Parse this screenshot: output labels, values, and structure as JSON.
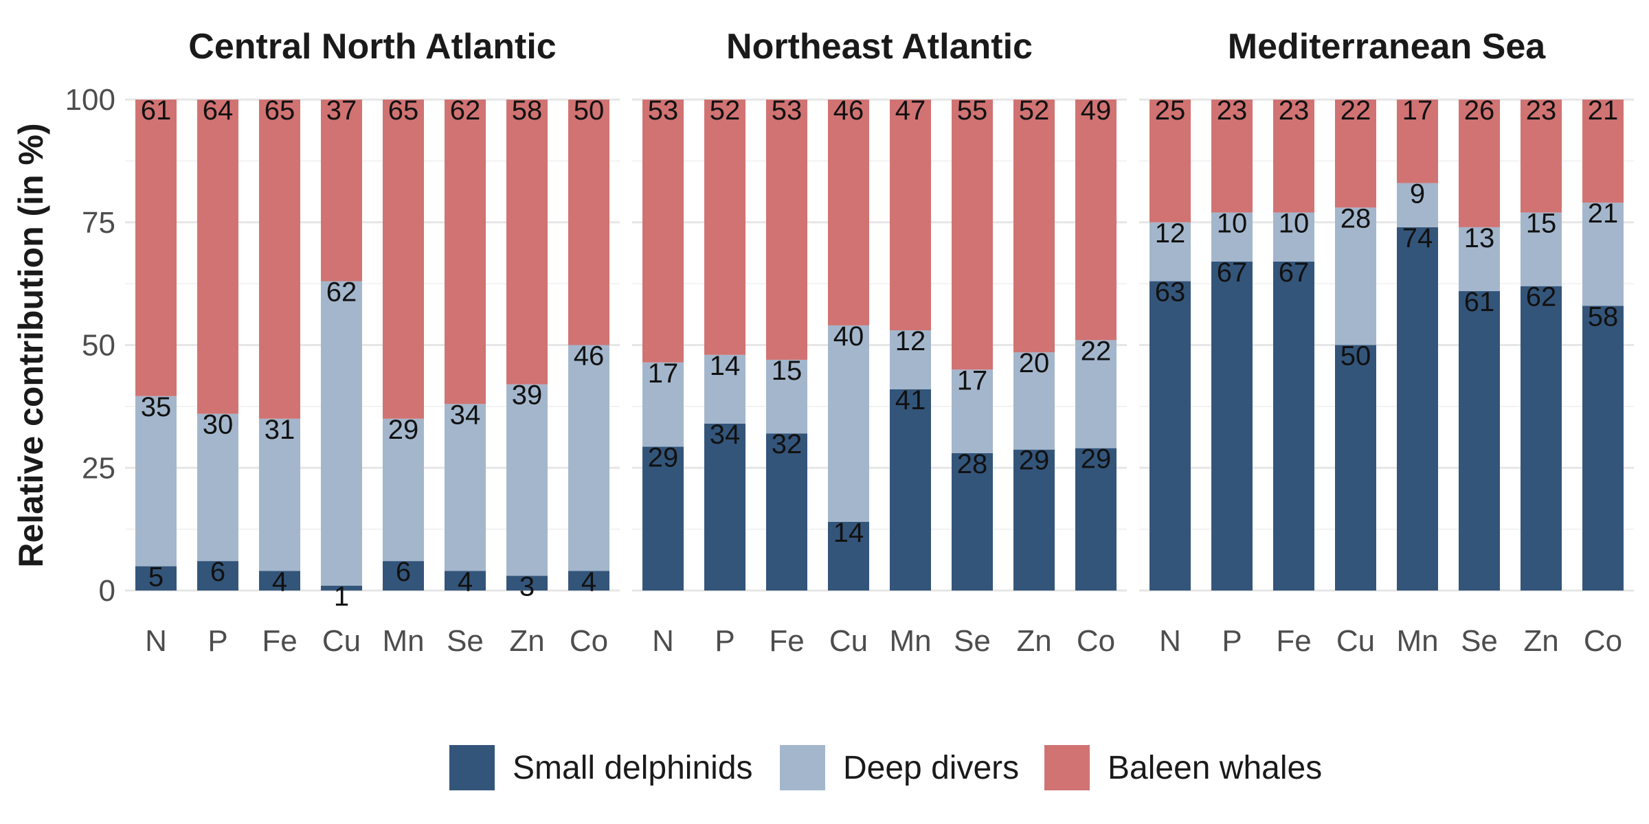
{
  "chart_data": {
    "type": "bar",
    "stacked": true,
    "ylabel": "Relative contribution (in %)",
    "xlabel": "",
    "ylim": [
      0,
      100
    ],
    "yticks": [
      0,
      25,
      50,
      75,
      100
    ],
    "categories": [
      "N",
      "P",
      "Fe",
      "Cu",
      "Mn",
      "Se",
      "Zn",
      "Co"
    ],
    "legend_position": "bottom",
    "series": [
      {
        "name": "Small delphinids",
        "color": "#34557a"
      },
      {
        "name": "Deep divers",
        "color": "#a3b6cc"
      },
      {
        "name": "Baleen whales",
        "color": "#d07372"
      }
    ],
    "panels": [
      {
        "title": "Central North Atlantic",
        "values": [
          [
            5,
            35,
            61
          ],
          [
            6,
            30,
            64
          ],
          [
            4,
            31,
            65
          ],
          [
            1,
            62,
            37
          ],
          [
            6,
            29,
            65
          ],
          [
            4,
            34,
            62
          ],
          [
            3,
            39,
            58
          ],
          [
            4,
            46,
            50
          ]
        ]
      },
      {
        "title": "Northeast Atlantic",
        "values": [
          [
            29,
            17,
            53
          ],
          [
            34,
            14,
            52
          ],
          [
            32,
            15,
            53
          ],
          [
            14,
            40,
            46
          ],
          [
            41,
            12,
            47
          ],
          [
            28,
            17,
            55
          ],
          [
            29,
            20,
            52
          ],
          [
            29,
            22,
            49
          ]
        ]
      },
      {
        "title": "Mediterranean Sea",
        "values": [
          [
            63,
            12,
            25
          ],
          [
            67,
            10,
            23
          ],
          [
            67,
            10,
            23
          ],
          [
            50,
            28,
            22
          ],
          [
            74,
            9,
            17
          ],
          [
            61,
            13,
            26
          ],
          [
            62,
            15,
            23
          ],
          [
            58,
            21,
            21
          ]
        ]
      }
    ]
  }
}
